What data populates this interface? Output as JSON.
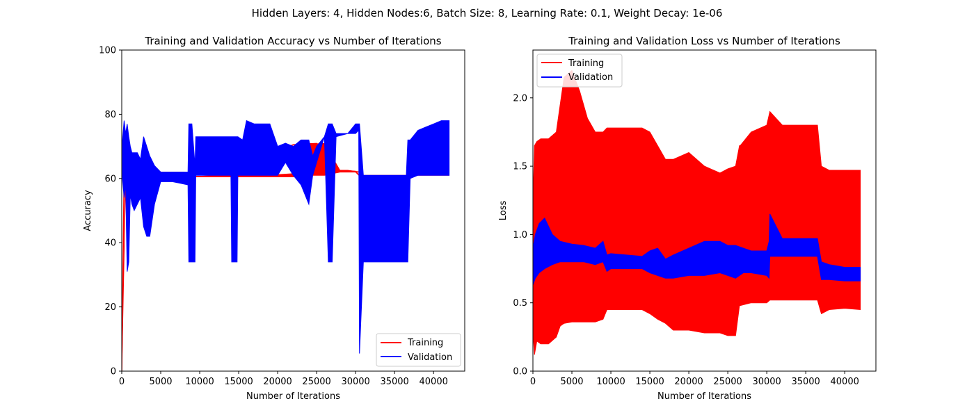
{
  "figure_title": "Hidden Layers: 4, Hidden Nodes:6, Batch Size: 8, Learning Rate: 0.1, Weight Decay: 1e-06",
  "colors": {
    "training": "#ff0000",
    "validation": "#0000ff"
  },
  "chart_data": [
    {
      "type": "line",
      "title": "Training and Validation Accuracy vs Number of Iterations",
      "xlabel": "Number of Iterations",
      "ylabel": "Accuracy",
      "xlim": [
        0,
        44000
      ],
      "ylim": [
        0,
        100
      ],
      "xticks": [
        0,
        5000,
        10000,
        15000,
        20000,
        25000,
        30000,
        35000,
        40000
      ],
      "yticks": [
        0,
        20,
        40,
        60,
        80,
        100
      ],
      "grid": false,
      "legend_position": "lower-right",
      "series": [
        {
          "name": "Training",
          "color": "#ff0000",
          "x": [
            0,
            300,
            600,
            1000,
            1400,
            2000,
            3000,
            4000,
            5000,
            6000,
            7000,
            8000,
            9000,
            10000,
            12000,
            13000,
            14000,
            15000,
            17000,
            19000,
            21000,
            22000,
            23000,
            25000,
            27000,
            29000,
            30500
          ],
          "y": [
            0,
            60,
            64,
            62,
            63,
            62,
            64,
            63,
            62,
            61.5,
            61.5,
            61,
            60.7,
            60.6,
            60.8,
            61,
            61.2,
            61.2,
            61,
            69.5,
            69.5,
            70.5,
            70.7,
            70.9,
            62.5,
            62.5,
            62
          ],
          "band": {
            "x": [
              0,
              500,
              1000,
              1500,
              2500,
              3500,
              5000,
              6500,
              8000,
              9000,
              10000,
              12000,
              14000,
              15000,
              16000,
              18000,
              20000,
              22000,
              24000,
              26000,
              28000,
              30000,
              30500,
              32000,
              34000,
              36500,
              37000,
              38000,
              40000,
              42000
            ],
            "low": [
              0,
              60,
              60,
              60,
              60,
              60,
              60,
              60,
              60,
              60.5,
              60.5,
              60.5,
              60.5,
              60.5,
              60.5,
              60.5,
              60.5,
              60.5,
              61,
              61,
              62,
              62,
              60.8,
              60.8,
              60.8,
              60.8,
              61,
              61,
              61,
              61
            ],
            "high": [
              0,
              62,
              63,
              62,
              62,
              62,
              62,
              62,
              62,
              60.7,
              60.7,
              60.9,
              61.2,
              61.2,
              61.2,
              61.2,
              61.2,
              61.5,
              70.7,
              70.9,
              62.5,
              62.3,
              61,
              61,
              61,
              61,
              61,
              61,
              61,
              61
            ]
          }
        },
        {
          "name": "Validation",
          "color": "#0000ff",
          "band": {
            "x": [
              100,
              300,
              500,
              700,
              900,
              1100,
              1300,
              1600,
              2000,
              2400,
              2800,
              3200,
              3600,
              4200,
              5000,
              6500,
              8500,
              8600,
              9000,
              9400,
              9500,
              10500,
              12500,
              14000,
              14100,
              14800,
              14900,
              15500,
              16000,
              17000,
              18000,
              19000,
              20000,
              21000,
              22000,
              23000,
              24000,
              24500,
              25000,
              26000,
              26500,
              27000,
              27500,
              29000,
              30000,
              30400,
              30500,
              31000,
              33000,
              35000,
              36500,
              36700,
              37000,
              38000,
              39000,
              40000,
              41000,
              42000
            ],
            "low": [
              60,
              54,
              58,
              31,
              34,
              55,
              52,
              50,
              52,
              54,
              45,
              42,
              42,
              52,
              59,
              59,
              58,
              34,
              34,
              34,
              61,
              61,
              61,
              61,
              34,
              34,
              61,
              61,
              61,
              61,
              61,
              61,
              61,
              65,
              61,
              58,
              52,
              61,
              65,
              73,
              34,
              34,
              73,
              74,
              74,
              75,
              5.5,
              34,
              34,
              34,
              34,
              34,
              60,
              61,
              61,
              61,
              61,
              61
            ],
            "high": [
              72,
              78,
              74,
              77,
              73,
              70,
              68,
              68,
              68,
              66,
              73,
              70,
              67,
              64,
              62,
              62,
              62,
              77,
              77,
              64,
              73,
              73,
              73,
              73,
              73,
              73,
              73,
              72,
              78,
              77,
              77,
              77,
              70,
              71,
              70,
              72,
              72,
              67,
              70,
              73,
              77,
              77,
              74,
              74,
              77,
              77,
              77,
              61,
              61,
              61,
              61,
              72,
              72,
              75,
              76,
              77,
              78,
              78
            ]
          }
        }
      ]
    },
    {
      "type": "line",
      "title": "Training and Validation Loss vs Number of Iterations",
      "xlabel": "Number of Iterations",
      "ylabel": "Loss",
      "xlim": [
        0,
        44000
      ],
      "ylim": [
        0,
        2.35
      ],
      "xticks": [
        0,
        5000,
        10000,
        15000,
        20000,
        25000,
        30000,
        35000,
        40000
      ],
      "yticks": [
        0.0,
        0.5,
        1.0,
        1.5,
        2.0
      ],
      "ytick_labels": [
        "0.0",
        "0.5",
        "1.0",
        "1.5",
        "2.0"
      ],
      "grid": false,
      "legend_position": "top-left",
      "series": [
        {
          "name": "Training",
          "color": "#ff0000",
          "band": {
            "x": [
              0,
              200,
              500,
              1000,
              2000,
              3000,
              3500,
              4000,
              5000,
              6000,
              7000,
              8000,
              9000,
              9500,
              10000,
              12000,
              14000,
              15000,
              16000,
              17000,
              18000,
              20000,
              22000,
              24000,
              25000,
              26000,
              26500,
              26600,
              28000,
              30000,
              30400,
              32000,
              34000,
              36500,
              37000,
              38000,
              40000,
              42000
            ],
            "low": [
              0.3,
              0.12,
              0.22,
              0.2,
              0.2,
              0.25,
              0.33,
              0.35,
              0.36,
              0.36,
              0.36,
              0.36,
              0.38,
              0.45,
              0.45,
              0.45,
              0.45,
              0.42,
              0.38,
              0.35,
              0.3,
              0.3,
              0.28,
              0.28,
              0.26,
              0.26,
              0.48,
              0.48,
              0.5,
              0.5,
              0.52,
              0.52,
              0.52,
              0.52,
              0.42,
              0.45,
              0.46,
              0.45
            ],
            "high": [
              1.2,
              1.65,
              1.68,
              1.7,
              1.7,
              1.75,
              1.95,
              2.15,
              2.2,
              2.05,
              1.85,
              1.75,
              1.75,
              1.78,
              1.78,
              1.78,
              1.78,
              1.75,
              1.65,
              1.55,
              1.55,
              1.6,
              1.5,
              1.45,
              1.48,
              1.5,
              1.65,
              1.65,
              1.75,
              1.8,
              1.9,
              1.8,
              1.8,
              1.8,
              1.5,
              1.47,
              1.47,
              1.47
            ]
          }
        },
        {
          "name": "Validation",
          "color": "#0000ff",
          "band": {
            "x": [
              0,
              300,
              800,
              1500,
              2500,
              3500,
              5000,
              6500,
              8000,
              9000,
              9500,
              10000,
              12000,
              14000,
              15000,
              16000,
              17000,
              18000,
              20000,
              22000,
              24000,
              25000,
              26000,
              27000,
              28000,
              30000,
              30300,
              30400,
              32000,
              34000,
              36500,
              37000,
              38000,
              40000,
              42000
            ],
            "low": [
              0.63,
              0.68,
              0.72,
              0.75,
              0.78,
              0.8,
              0.8,
              0.8,
              0.78,
              0.8,
              0.73,
              0.75,
              0.75,
              0.75,
              0.72,
              0.7,
              0.68,
              0.68,
              0.7,
              0.7,
              0.72,
              0.7,
              0.68,
              0.72,
              0.72,
              0.7,
              0.68,
              0.84,
              0.84,
              0.84,
              0.84,
              0.67,
              0.67,
              0.66,
              0.66
            ],
            "high": [
              0.9,
              1.0,
              1.08,
              1.12,
              1.0,
              0.95,
              0.93,
              0.92,
              0.9,
              0.95,
              0.85,
              0.86,
              0.85,
              0.84,
              0.88,
              0.9,
              0.82,
              0.85,
              0.9,
              0.95,
              0.95,
              0.92,
              0.92,
              0.9,
              0.88,
              0.88,
              0.95,
              1.15,
              0.97,
              0.97,
              0.97,
              0.8,
              0.78,
              0.76,
              0.76
            ]
          }
        }
      ]
    }
  ]
}
